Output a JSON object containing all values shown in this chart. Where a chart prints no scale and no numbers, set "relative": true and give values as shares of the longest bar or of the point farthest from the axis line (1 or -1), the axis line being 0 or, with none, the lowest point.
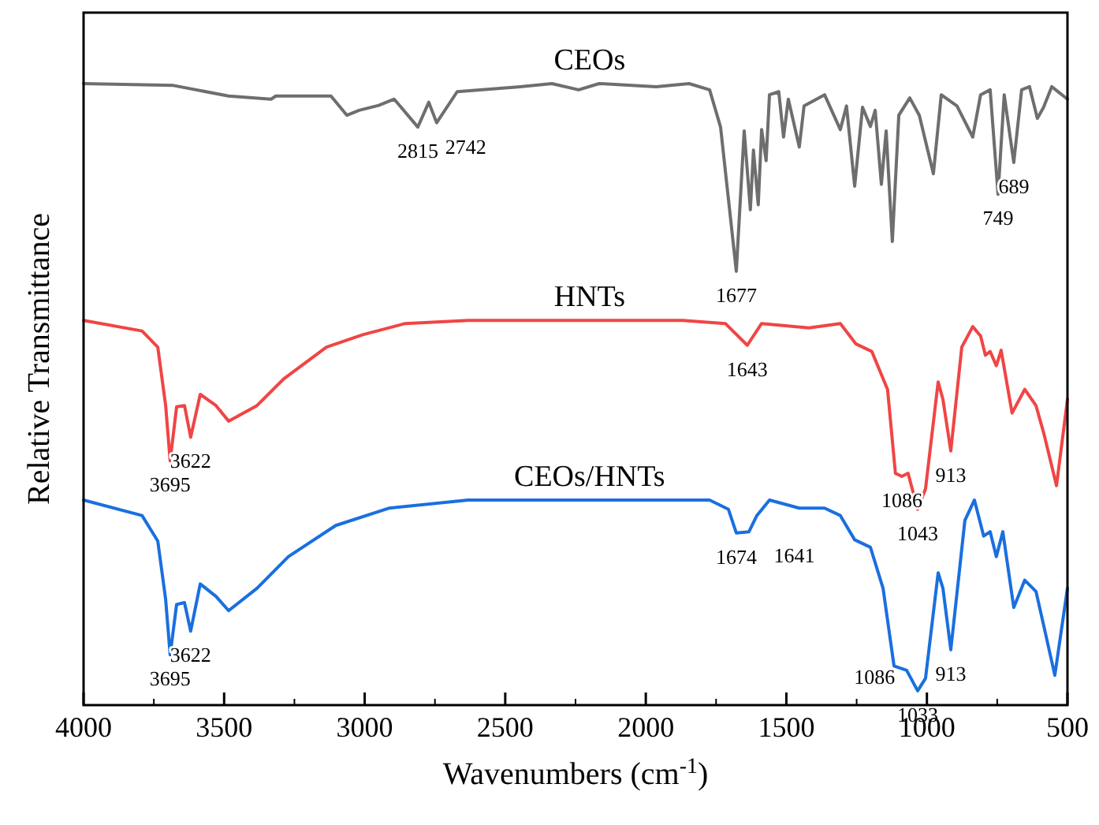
{
  "chart_data": {
    "type": "line",
    "relative": true,
    "xlabel": "Wavenumbers (cm$^{-1}$)",
    "ylabel": "Relative Transmittance",
    "xlim": [
      4000,
      500
    ],
    "xticks": [
      4000,
      3500,
      3000,
      2500,
      2000,
      1500,
      1000,
      500
    ],
    "legend": false,
    "grid": false,
    "marker": "none",
    "line_style": "solid",
    "series": [
      {
        "name": "CEOs",
        "color": "#6e6e6e",
        "x": [
          4000,
          3680,
          3484,
          3333,
          3316,
          3120,
          3063,
          3020,
          2950,
          2895,
          2811,
          2772,
          2744,
          2671,
          2447,
          2334,
          2239,
          2166,
          1963,
          1846,
          1773,
          1734,
          1678,
          1650,
          1628,
          1617,
          1600,
          1588,
          1572,
          1560,
          1527,
          1510,
          1493,
          1454,
          1437,
          1364,
          1308,
          1286,
          1257,
          1229,
          1201,
          1184,
          1162,
          1145,
          1123,
          1100,
          1061,
          1027,
          977,
          949,
          893,
          837,
          809,
          775,
          747,
          725,
          691,
          663,
          635,
          607,
          585,
          556,
          500
        ],
        "values": [
          1.0,
          0.997,
          0.98,
          0.975,
          0.98,
          0.98,
          0.949,
          0.957,
          0.965,
          0.975,
          0.93,
          0.97,
          0.937,
          0.987,
          0.995,
          1.0,
          0.99,
          1.0,
          0.995,
          1.0,
          0.99,
          0.93,
          0.698,
          0.924,
          0.797,
          0.893,
          0.805,
          0.926,
          0.876,
          0.982,
          0.987,
          0.914,
          0.975,
          0.898,
          0.964,
          0.982,
          0.926,
          0.964,
          0.835,
          0.962,
          0.931,
          0.957,
          0.838,
          0.924,
          0.746,
          0.949,
          0.977,
          0.949,
          0.855,
          0.982,
          0.964,
          0.914,
          0.982,
          0.99,
          0.822,
          0.982,
          0.873,
          0.99,
          0.995,
          0.944,
          0.962,
          0.995,
          0.975
        ]
      },
      {
        "name": "HNTs",
        "color": "#f04545",
        "x": [
          4000,
          3792,
          3736,
          3708,
          3692,
          3669,
          3641,
          3619,
          3585,
          3529,
          3484,
          3383,
          3288,
          3136,
          3007,
          2856,
          2632,
          2278,
          1869,
          1717,
          1639,
          1588,
          1420,
          1308,
          1252,
          1196,
          1140,
          1112,
          1089,
          1067,
          1033,
          1005,
          960,
          943,
          915,
          876,
          837,
          809,
          792,
          775,
          753,
          736,
          697,
          652,
          612,
          584,
          539,
          500
        ],
        "values": [
          0.619,
          0.602,
          0.576,
          0.482,
          0.393,
          0.48,
          0.482,
          0.431,
          0.5,
          0.482,
          0.457,
          0.482,
          0.525,
          0.576,
          0.596,
          0.614,
          0.619,
          0.619,
          0.619,
          0.614,
          0.579,
          0.614,
          0.607,
          0.614,
          0.581,
          0.569,
          0.508,
          0.373,
          0.368,
          0.373,
          0.315,
          0.348,
          0.52,
          0.492,
          0.409,
          0.576,
          0.609,
          0.594,
          0.563,
          0.569,
          0.546,
          0.571,
          0.47,
          0.508,
          0.482,
          0.437,
          0.353,
          0.492
        ]
      },
      {
        "name": "CEOs/HNTs",
        "color": "#1a6fdf",
        "x": [
          4000,
          3792,
          3736,
          3708,
          3692,
          3669,
          3641,
          3619,
          3585,
          3529,
          3484,
          3383,
          3271,
          3103,
          2912,
          2632,
          2278,
          1773,
          1706,
          1678,
          1633,
          1605,
          1560,
          1454,
          1364,
          1308,
          1257,
          1201,
          1156,
          1117,
          1072,
          1033,
          1005,
          960,
          943,
          915,
          865,
          831,
          798,
          775,
          753,
          730,
          691,
          652,
          612,
          584,
          545,
          500
        ],
        "values": [
          0.33,
          0.305,
          0.264,
          0.17,
          0.081,
          0.162,
          0.165,
          0.119,
          0.195,
          0.175,
          0.152,
          0.188,
          0.239,
          0.289,
          0.317,
          0.33,
          0.33,
          0.33,
          0.315,
          0.277,
          0.279,
          0.305,
          0.33,
          0.317,
          0.317,
          0.305,
          0.266,
          0.254,
          0.188,
          0.063,
          0.056,
          0.023,
          0.043,
          0.213,
          0.188,
          0.089,
          0.297,
          0.33,
          0.272,
          0.279,
          0.239,
          0.279,
          0.157,
          0.201,
          0.183,
          0.127,
          0.048,
          0.188
        ]
      }
    ],
    "annotations": [
      {
        "text": "2815",
        "x": 2811,
        "y": 0.93
      },
      {
        "text": "2742",
        "x": 2744,
        "y": 0.937
      },
      {
        "text": "1677",
        "x": 1678,
        "y": 0.698
      },
      {
        "text": "749",
        "x": 747,
        "y": 0.822
      },
      {
        "text": "689",
        "x": 691,
        "y": 0.873
      },
      {
        "text": "3695",
        "x": 3692,
        "y": 0.393
      },
      {
        "text": "3622",
        "x": 3619,
        "y": 0.431
      },
      {
        "text": "1643",
        "x": 1639,
        "y": 0.579
      },
      {
        "text": "1086",
        "x": 1089,
        "y": 0.368
      },
      {
        "text": "1043",
        "x": 1033,
        "y": 0.315
      },
      {
        "text": "913",
        "x": 915,
        "y": 0.409
      },
      {
        "text": "3695",
        "x": 3692,
        "y": 0.081
      },
      {
        "text": "3622",
        "x": 3619,
        "y": 0.119
      },
      {
        "text": "1674",
        "x": 1678,
        "y": 0.277
      },
      {
        "text": "1641",
        "x": 1633,
        "y": 0.279
      },
      {
        "text": "1086",
        "x": 1072,
        "y": 0.056
      },
      {
        "text": "913",
        "x": 915,
        "y": 0.089
      },
      {
        "text": "1033",
        "x": 1033,
        "y": 0.023
      }
    ]
  }
}
